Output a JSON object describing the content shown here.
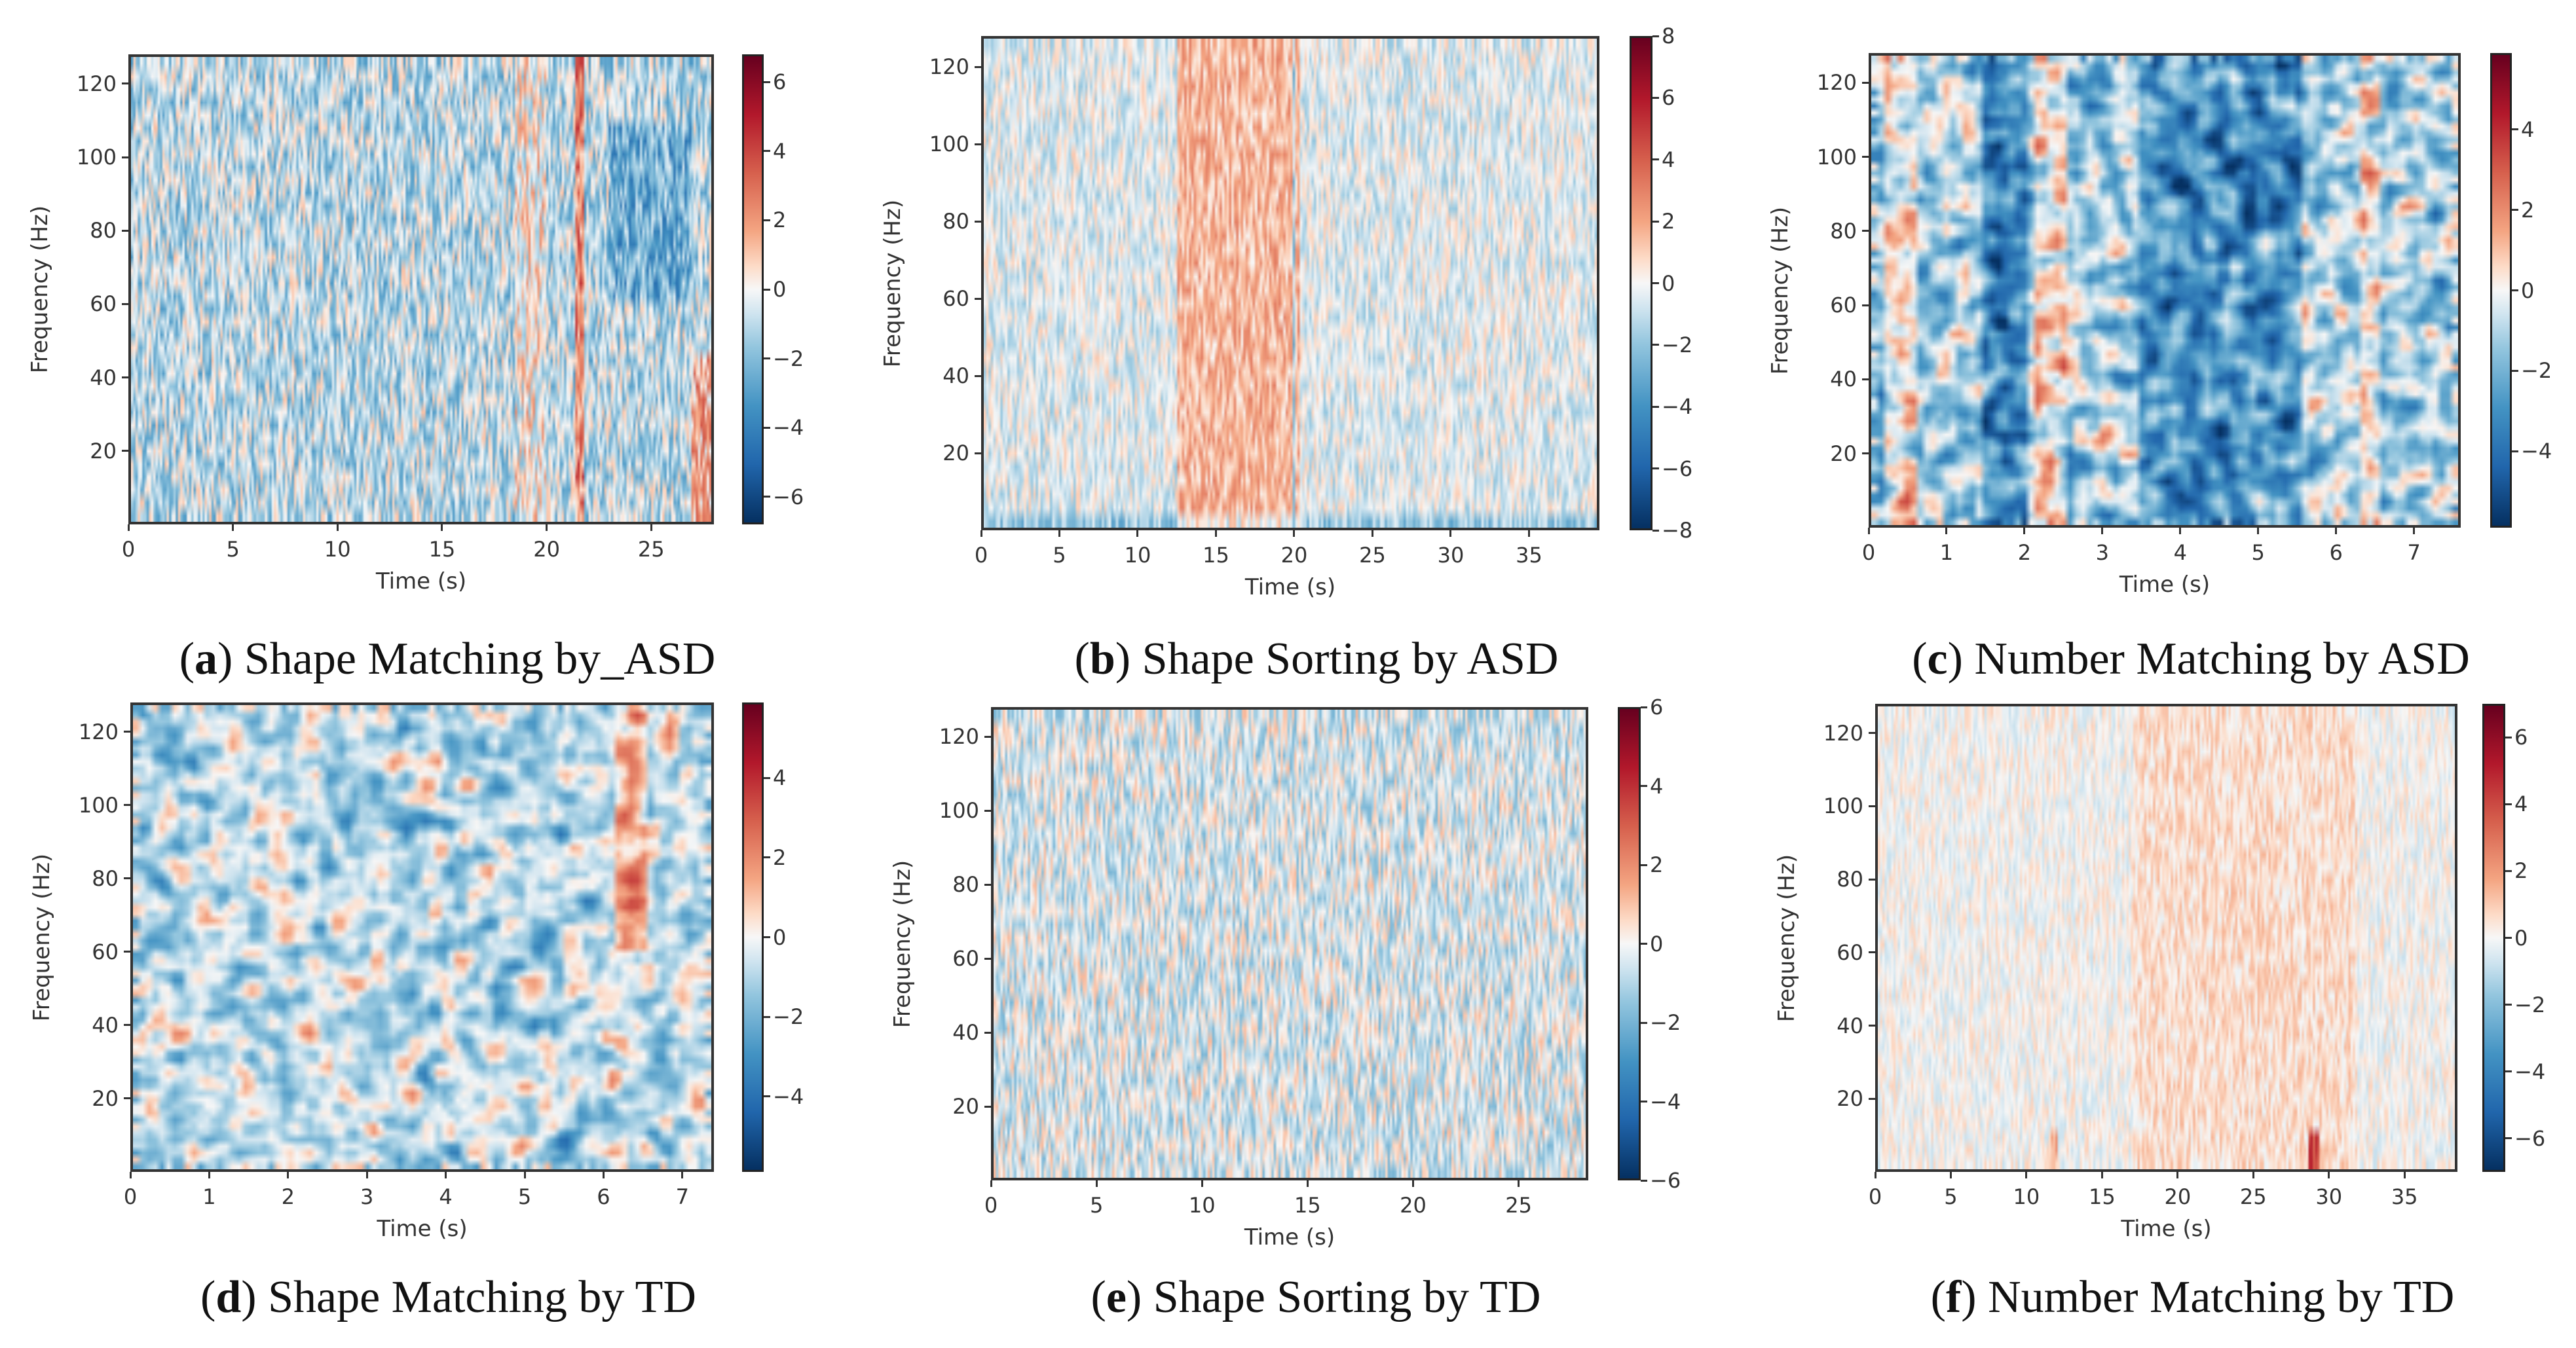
{
  "chart_data": [
    {
      "type": "heatmap",
      "caption_label": "a",
      "caption_text": "Shape Matching by_ASD",
      "xlabel": "Time (s)",
      "ylabel": "Frequency (Hz)",
      "xlim": [
        0,
        28
      ],
      "ylim": [
        0,
        128
      ],
      "xticks": [
        0,
        5,
        10,
        15,
        20,
        25
      ],
      "yticks": [
        20,
        40,
        60,
        80,
        100,
        120
      ],
      "clim": [
        -6.8,
        6.8
      ],
      "cticks": [
        -6,
        -4,
        -2,
        0,
        2,
        4,
        6
      ],
      "colormap": "RdBu_r",
      "texture": "streaky",
      "bias": -1.0,
      "noise": 2.2,
      "features": [
        {
          "t": [
            21.4,
            21.9
          ],
          "f": [
            0,
            128
          ],
          "value": 3.5
        },
        {
          "t": [
            27,
            28
          ],
          "f": [
            0,
            45
          ],
          "value": 2.5
        },
        {
          "t": [
            18.5,
            20
          ],
          "f": [
            0,
            128
          ],
          "value": 1.2
        },
        {
          "t": [
            23,
            27
          ],
          "f": [
            60,
            110
          ],
          "value": -1.5
        }
      ]
    },
    {
      "type": "heatmap",
      "caption_label": "b",
      "caption_text": "Shape Sorting by ASD",
      "xlabel": "Time (s)",
      "ylabel": "Frequency (Hz)",
      "xlim": [
        0,
        39.5
      ],
      "ylim": [
        0,
        128
      ],
      "xticks": [
        0,
        5,
        10,
        15,
        20,
        25,
        30,
        35
      ],
      "yticks": [
        20,
        40,
        60,
        80,
        100,
        120
      ],
      "clim": [
        -8,
        8
      ],
      "cticks": [
        -8,
        -6,
        -4,
        -2,
        0,
        2,
        4,
        6,
        8
      ],
      "colormap": "RdBu_r",
      "texture": "streaky",
      "bias": -0.4,
      "noise": 1.6,
      "features": [
        {
          "t": [
            12.5,
            20.3
          ],
          "f": [
            0,
            128
          ],
          "value": 2.0
        },
        {
          "t": [
            19.9,
            20.1
          ],
          "f": [
            0,
            128
          ],
          "value": -3.5
        },
        {
          "t": [
            0,
            39.5
          ],
          "f": [
            0,
            4
          ],
          "value": -1.5
        }
      ]
    },
    {
      "type": "heatmap",
      "caption_label": "c",
      "caption_text": "Number Matching by ASD",
      "xlabel": "Time (s)",
      "ylabel": "Frequency (Hz)",
      "xlim": [
        0,
        7.6
      ],
      "ylim": [
        0,
        128
      ],
      "xticks": [
        0,
        1,
        2,
        3,
        4,
        5,
        6,
        7
      ],
      "yticks": [
        20,
        40,
        60,
        80,
        100,
        120
      ],
      "clim": [
        -5.9,
        5.9
      ],
      "cticks": [
        -4,
        -2,
        0,
        2,
        4
      ],
      "colormap": "RdBu_r",
      "texture": "blobby",
      "bias": -1.2,
      "noise": 2.4,
      "features": [
        {
          "t": [
            1.4,
            2.0
          ],
          "f": [
            0,
            128
          ],
          "value": -2.0
        },
        {
          "t": [
            3.5,
            5.6
          ],
          "f": [
            0,
            128
          ],
          "value": -1.8
        },
        {
          "t": [
            0.2,
            0.6
          ],
          "f": [
            0,
            128
          ],
          "value": 1.8
        },
        {
          "t": [
            2.1,
            2.5
          ],
          "f": [
            0,
            128
          ],
          "value": 1.8
        },
        {
          "t": [
            6.3,
            6.6
          ],
          "f": [
            0,
            128
          ],
          "value": 1.5
        }
      ]
    },
    {
      "type": "heatmap",
      "caption_label": "d",
      "caption_text": "Shape Matching by TD",
      "xlabel": "Time (s)",
      "ylabel": "Frequency (Hz)",
      "xlim": [
        0,
        7.4
      ],
      "ylim": [
        0,
        128
      ],
      "xticks": [
        0,
        1,
        2,
        3,
        4,
        5,
        6,
        7
      ],
      "yticks": [
        20,
        40,
        60,
        80,
        100,
        120
      ],
      "clim": [
        -5.9,
        5.9
      ],
      "cticks": [
        -4,
        -2,
        0,
        2,
        4
      ],
      "colormap": "RdBu_r",
      "texture": "blobby",
      "bias": -0.8,
      "noise": 2.0,
      "features": [
        {
          "t": [
            6.2,
            6.6
          ],
          "f": [
            60,
            128
          ],
          "value": 1.8
        }
      ]
    },
    {
      "type": "heatmap",
      "caption_label": "e",
      "caption_text": "Shape Sorting by TD",
      "xlabel": "Time (s)",
      "ylabel": "Frequency (Hz)",
      "xlim": [
        0,
        28.3
      ],
      "ylim": [
        0,
        128
      ],
      "xticks": [
        0,
        5,
        10,
        15,
        20,
        25
      ],
      "yticks": [
        20,
        40,
        60,
        80,
        100,
        120
      ],
      "clim": [
        -6,
        6
      ],
      "cticks": [
        -6,
        -4,
        -2,
        0,
        2,
        4,
        6
      ],
      "colormap": "RdBu_r",
      "texture": "streaky",
      "bias": -0.4,
      "noise": 1.6,
      "features": []
    },
    {
      "type": "heatmap",
      "caption_label": "f",
      "caption_text": "Number Matching by TD",
      "xlabel": "Time (s)",
      "ylabel": "Frequency (Hz)",
      "xlim": [
        0,
        38.5
      ],
      "ylim": [
        0,
        128
      ],
      "xticks": [
        0,
        5,
        10,
        15,
        20,
        25,
        30,
        35
      ],
      "yticks": [
        20,
        40,
        60,
        80,
        100,
        120
      ],
      "clim": [
        -7,
        7
      ],
      "cticks": [
        -6,
        -4,
        -2,
        0,
        2,
        4,
        6
      ],
      "colormap": "RdBu_r",
      "texture": "streaky",
      "bias": 0.0,
      "noise": 0.9,
      "features": [
        {
          "t": [
            17,
            32
          ],
          "f": [
            0,
            128
          ],
          "value": 0.6
        },
        {
          "t": [
            28.8,
            29.4
          ],
          "f": [
            0,
            12
          ],
          "value": 3.5
        },
        {
          "t": [
            11.5,
            12
          ],
          "f": [
            0,
            10
          ],
          "value": 1.5
        }
      ]
    }
  ]
}
